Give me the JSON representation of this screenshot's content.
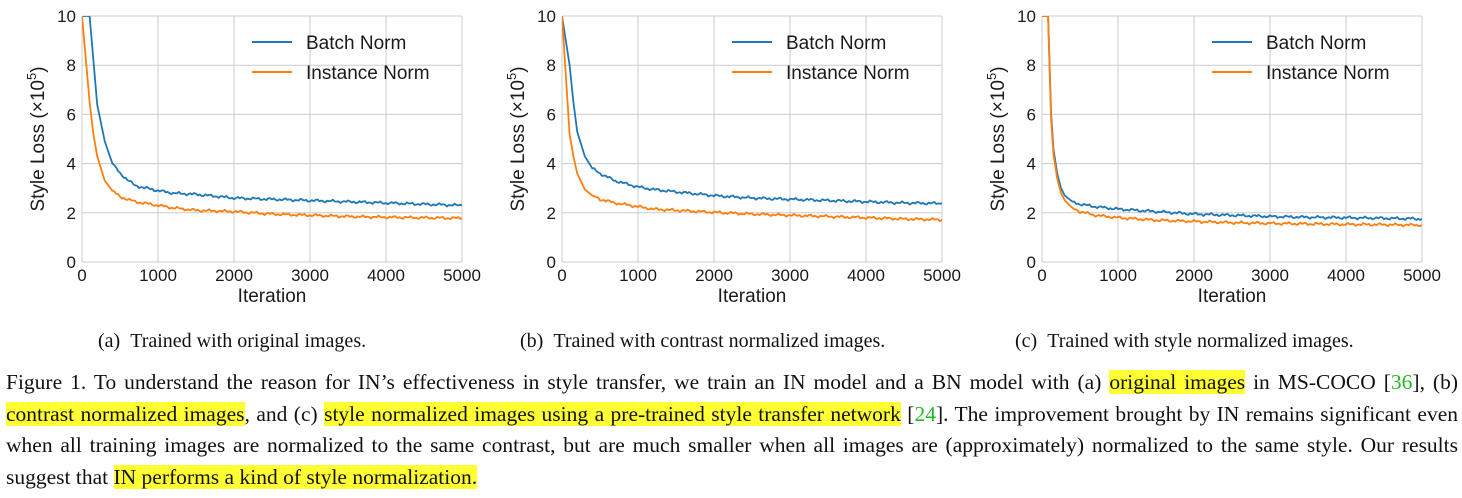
{
  "colors": {
    "batch": "#1f77b4",
    "instance": "#ff7f0e",
    "grid": "#cccccc",
    "highlight": "#ffff33",
    "ref": "#22bb22"
  },
  "chart_data": [
    {
      "type": "line",
      "xlabel": "Iteration",
      "ylabel": "Style Loss (×10⁵)",
      "xlim": [
        0,
        5000
      ],
      "ylim": [
        0,
        10
      ],
      "xticks": [
        "0",
        "1000",
        "2000",
        "3000",
        "4000",
        "5000"
      ],
      "yticks": [
        "0",
        "2",
        "4",
        "6",
        "8",
        "10"
      ],
      "grid": true,
      "legend": "top-right",
      "x": [
        0,
        100,
        150,
        200,
        300,
        400,
        500,
        700,
        1000,
        1200,
        1500,
        2000,
        2500,
        3000,
        3500,
        4000,
        4500,
        5000
      ],
      "series": [
        {
          "name": "Batch Norm",
          "values": [
            10,
            10,
            8.2,
            6.4,
            4.9,
            4.0,
            3.6,
            3.1,
            2.9,
            2.8,
            2.75,
            2.6,
            2.55,
            2.5,
            2.45,
            2.4,
            2.35,
            2.3
          ]
        },
        {
          "name": "Instance Norm",
          "values": [
            10,
            6.5,
            5.2,
            4.3,
            3.3,
            2.9,
            2.65,
            2.45,
            2.3,
            2.2,
            2.1,
            2.05,
            1.95,
            1.9,
            1.85,
            1.82,
            1.8,
            1.78
          ]
        }
      ]
    },
    {
      "type": "line",
      "xlabel": "Iteration",
      "ylabel": "Style Loss (×10⁵)",
      "xlim": [
        0,
        5000
      ],
      "ylim": [
        0,
        10
      ],
      "xticks": [
        "0",
        "1000",
        "2000",
        "3000",
        "4000",
        "5000"
      ],
      "yticks": [
        "0",
        "2",
        "4",
        "6",
        "8",
        "10"
      ],
      "grid": true,
      "legend": "top-right",
      "x": [
        0,
        100,
        150,
        200,
        300,
        400,
        500,
        700,
        1000,
        1200,
        1500,
        2000,
        2500,
        3000,
        3500,
        4000,
        4500,
        5000
      ],
      "series": [
        {
          "name": "Batch Norm",
          "values": [
            10,
            8.0,
            6.5,
            5.3,
            4.3,
            3.8,
            3.6,
            3.3,
            3.05,
            2.95,
            2.85,
            2.7,
            2.6,
            2.55,
            2.5,
            2.45,
            2.4,
            2.38
          ]
        },
        {
          "name": "Instance Norm",
          "values": [
            10,
            5.2,
            4.3,
            3.6,
            2.95,
            2.7,
            2.55,
            2.4,
            2.25,
            2.15,
            2.1,
            2.02,
            1.95,
            1.9,
            1.85,
            1.8,
            1.75,
            1.72
          ]
        }
      ]
    },
    {
      "type": "line",
      "xlabel": "Iteration",
      "ylabel": "Style Loss (×10⁵)",
      "xlim": [
        0,
        5000
      ],
      "ylim": [
        0,
        10
      ],
      "xticks": [
        "0",
        "1000",
        "2000",
        "3000",
        "4000",
        "5000"
      ],
      "yticks": [
        "0",
        "2",
        "4",
        "6",
        "8",
        "10"
      ],
      "grid": true,
      "legend": "top-right",
      "x": [
        0,
        80,
        120,
        150,
        200,
        250,
        300,
        400,
        500,
        700,
        1000,
        1500,
        2000,
        2500,
        3000,
        3500,
        4000,
        4500,
        5000
      ],
      "series": [
        {
          "name": "Batch Norm",
          "values": [
            10,
            10,
            6.0,
            4.6,
            3.6,
            3.0,
            2.7,
            2.45,
            2.35,
            2.25,
            2.15,
            2.05,
            1.95,
            1.9,
            1.85,
            1.82,
            1.8,
            1.78,
            1.75
          ]
        },
        {
          "name": "Instance Norm",
          "values": [
            10,
            10,
            5.8,
            4.4,
            3.4,
            2.8,
            2.5,
            2.2,
            2.05,
            1.9,
            1.8,
            1.7,
            1.65,
            1.6,
            1.57,
            1.55,
            1.53,
            1.52,
            1.5
          ]
        }
      ]
    }
  ],
  "subcaptions": [
    "(a) Trained with original images.",
    "(b) Trained with contrast normalized images.",
    "(c) Trained with style normalized images."
  ],
  "caption": {
    "p1": "Figure 1. To understand the reason for IN’s effectiveness in style transfer, we train an IN model and a BN model with (a) ",
    "h1": "original images",
    "p2": " in MS-COCO [",
    "r1": "36",
    "p3": "], (b) ",
    "h2": "contrast normalized images",
    "p4": ", and (c) ",
    "h3": "style normalized images using a pre-trained style transfer network",
    "p5": " [",
    "r2": "24",
    "p6": "]. The improvement brought by IN remains significant even when all training images are normalized to the same contrast, but are much smaller when all images are (approximately) normalized to the same style. Our results suggest that ",
    "h4": "IN performs a kind of style normalization."
  }
}
